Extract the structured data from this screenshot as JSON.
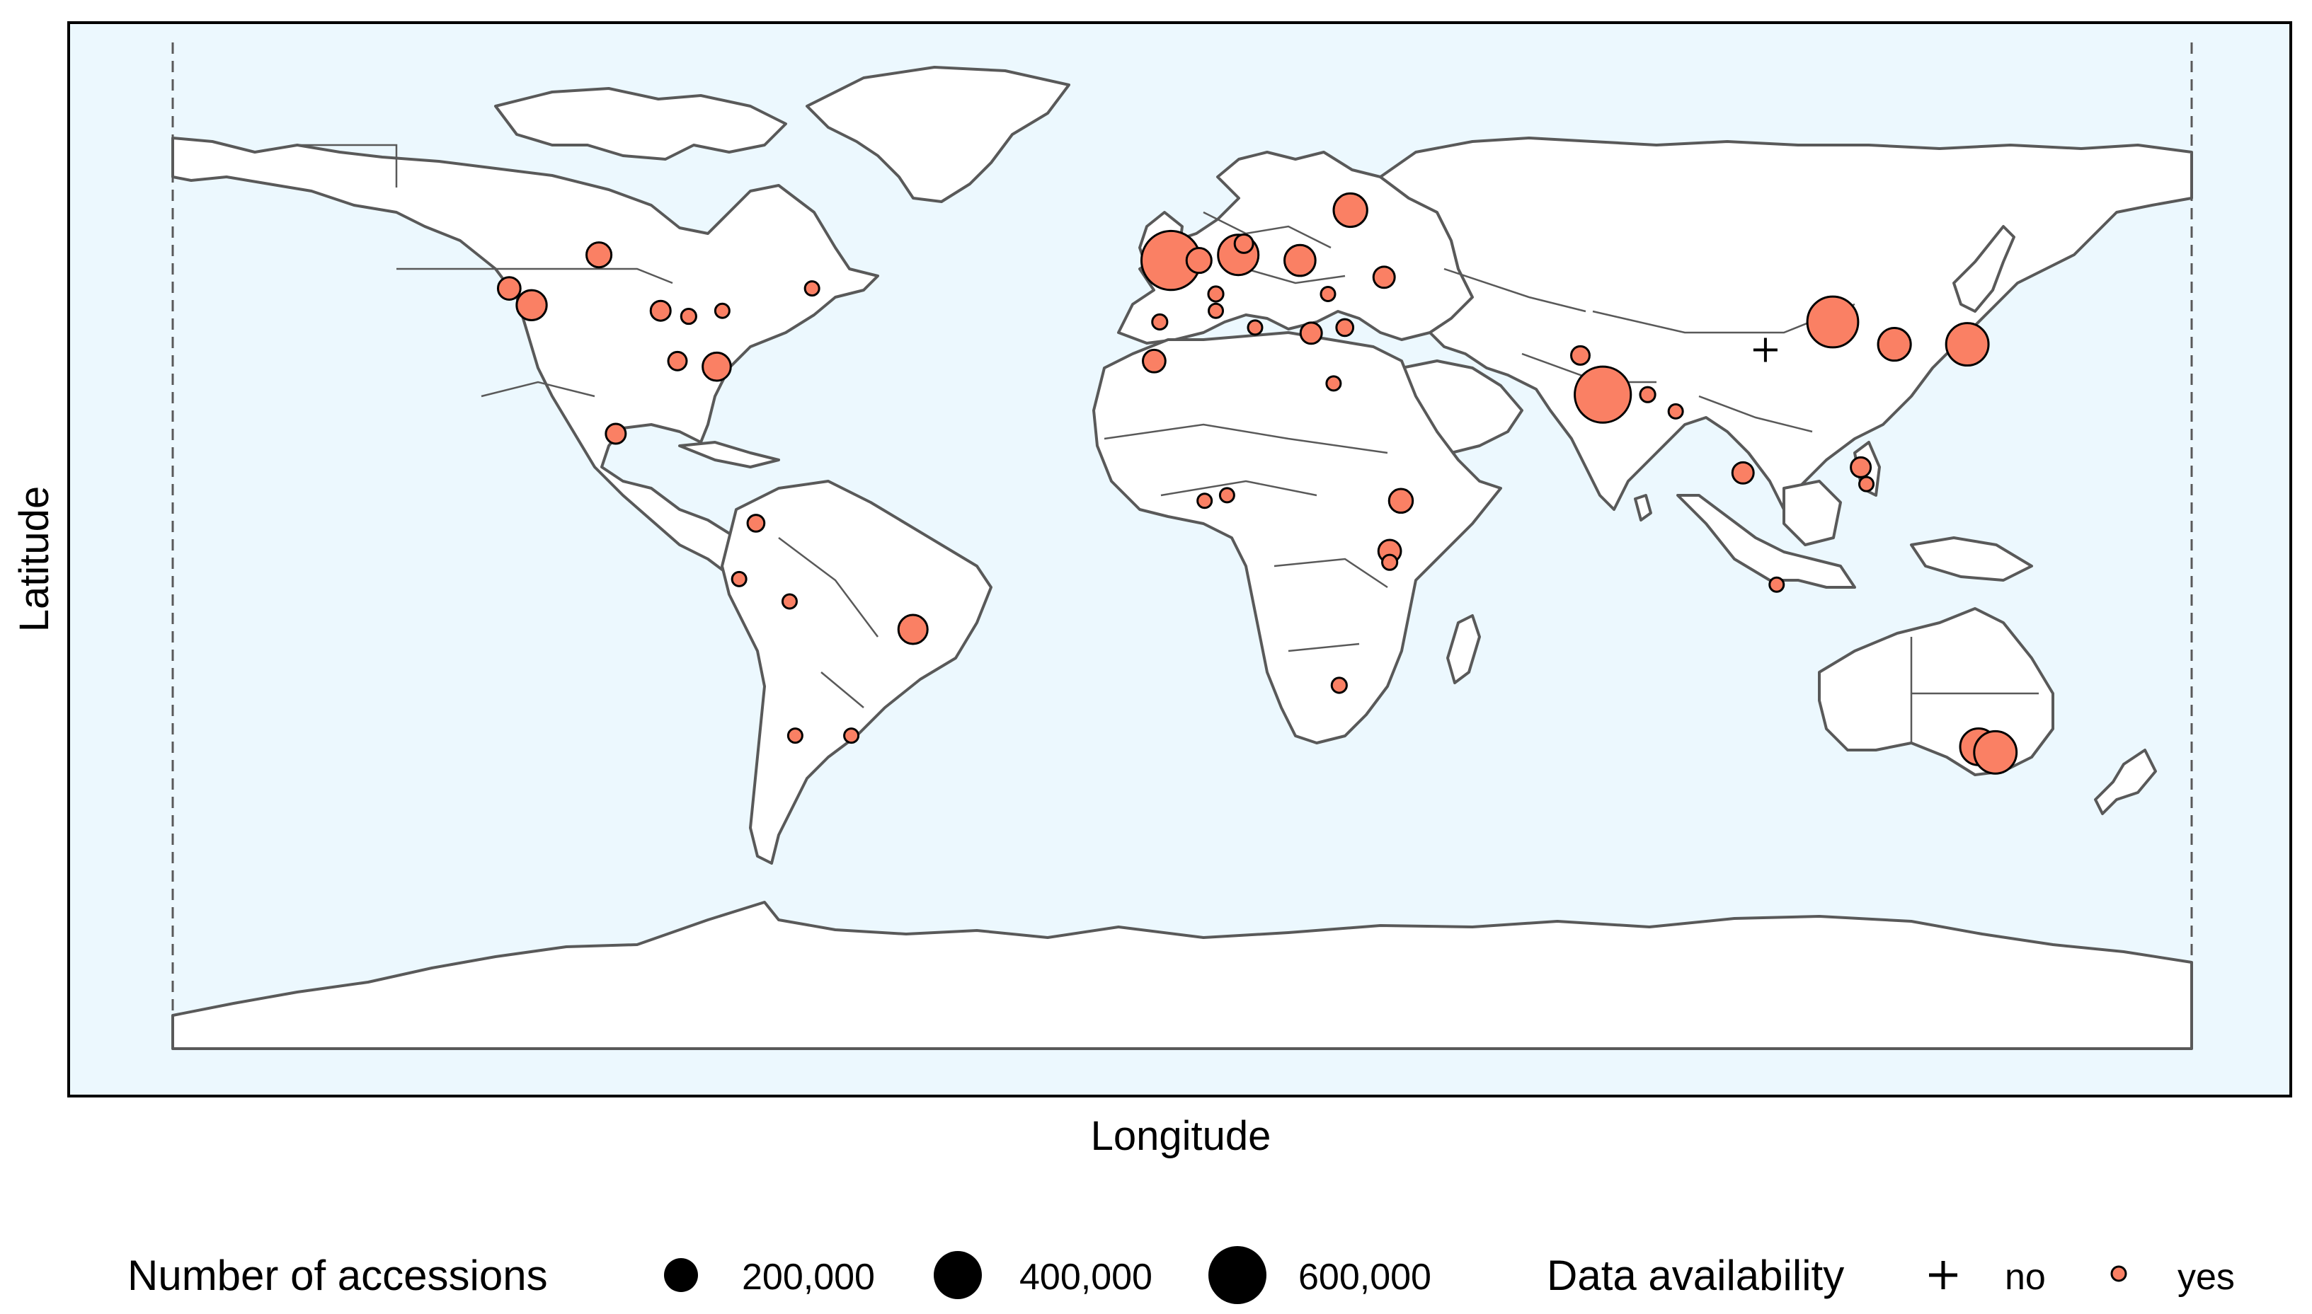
{
  "axes": {
    "xlabel": "Longitude",
    "ylabel": "Latitude"
  },
  "colors": {
    "ocean": "#ecf8fe",
    "marker": "#fa8064",
    "outline": "#595959"
  },
  "legend": {
    "size_title": "Number of accessions",
    "size_items": [
      {
        "label": "200,000",
        "value": 200000
      },
      {
        "label": "400,000",
        "value": 400000
      },
      {
        "label": "600,000",
        "value": 600000
      }
    ],
    "avail_title": "Data availability",
    "avail_items": [
      {
        "label": "no",
        "symbol": "plus"
      },
      {
        "label": "yes",
        "symbol": "circle"
      }
    ]
  },
  "chart_data": {
    "type": "scatter",
    "xlabel": "Longitude",
    "ylabel": "Latitude",
    "xlim": [
      -180,
      180
    ],
    "ylim": [
      -90,
      90
    ],
    "series": [
      {
        "name": "yes",
        "points": [
          {
            "lon": -104,
            "lat": 52,
            "value": 110000
          },
          {
            "lon": -120,
            "lat": 46,
            "value": 90000
          },
          {
            "lon": -116,
            "lat": 43,
            "value": 160000
          },
          {
            "lon": -93,
            "lat": 42,
            "value": 70000
          },
          {
            "lon": -88,
            "lat": 41,
            "value": 40000
          },
          {
            "lon": -82,
            "lat": 42,
            "value": 30000
          },
          {
            "lon": -90,
            "lat": 33,
            "value": 60000
          },
          {
            "lon": -83,
            "lat": 32,
            "value": 140000
          },
          {
            "lon": -66,
            "lat": 46,
            "value": 20000
          },
          {
            "lon": -101,
            "lat": 20,
            "value": 70000
          },
          {
            "lon": -76,
            "lat": 4,
            "value": 50000
          },
          {
            "lon": -79,
            "lat": -6,
            "value": 25000
          },
          {
            "lon": -70,
            "lat": -10,
            "value": 30000
          },
          {
            "lon": -48,
            "lat": -15,
            "value": 150000
          },
          {
            "lon": -69,
            "lat": -34,
            "value": 30000
          },
          {
            "lon": -59,
            "lat": -34,
            "value": 25000
          },
          {
            "lon": -2,
            "lat": 51,
            "value": 620000
          },
          {
            "lon": 3,
            "lat": 51,
            "value": 110000
          },
          {
            "lon": 10,
            "lat": 52,
            "value": 290000
          },
          {
            "lon": 11,
            "lat": 54,
            "value": 60000
          },
          {
            "lon": 21,
            "lat": 51,
            "value": 170000
          },
          {
            "lon": 30,
            "lat": 60,
            "value": 200000
          },
          {
            "lon": 36,
            "lat": 48,
            "value": 80000
          },
          {
            "lon": 26,
            "lat": 45,
            "value": 30000
          },
          {
            "lon": 6,
            "lat": 45,
            "value": 40000
          },
          {
            "lon": 6,
            "lat": 42,
            "value": 30000
          },
          {
            "lon": -4,
            "lat": 40,
            "value": 40000
          },
          {
            "lon": -5,
            "lat": 33,
            "value": 90000
          },
          {
            "lon": 13,
            "lat": 39,
            "value": 35000
          },
          {
            "lon": 23,
            "lat": 38,
            "value": 80000
          },
          {
            "lon": 29,
            "lat": 39,
            "value": 50000
          },
          {
            "lon": 27,
            "lat": 29,
            "value": 35000
          },
          {
            "lon": 39,
            "lat": 8,
            "value": 100000
          },
          {
            "lon": 37,
            "lat": -1,
            "value": 90000
          },
          {
            "lon": 37,
            "lat": -3,
            "value": 40000
          },
          {
            "lon": 28,
            "lat": -25,
            "value": 40000
          },
          {
            "lon": 4,
            "lat": 8,
            "value": 20000
          },
          {
            "lon": 8,
            "lat": 9,
            "value": 20000
          },
          {
            "lon": 71,
            "lat": 34,
            "value": 60000
          },
          {
            "lon": 75,
            "lat": 27,
            "value": 560000
          },
          {
            "lon": 83,
            "lat": 27,
            "value": 40000
          },
          {
            "lon": 88,
            "lat": 24,
            "value": 35000
          },
          {
            "lon": 100,
            "lat": 13,
            "value": 80000
          },
          {
            "lon": 121,
            "lat": 14,
            "value": 70000
          },
          {
            "lon": 122,
            "lat": 11,
            "value": 25000
          },
          {
            "lon": 106,
            "lat": -7,
            "value": 30000
          },
          {
            "lon": 116,
            "lat": 40,
            "value": 460000
          },
          {
            "lon": 127,
            "lat": 36,
            "value": 190000
          },
          {
            "lon": 140,
            "lat": 36,
            "value": 320000
          },
          {
            "lon": 142,
            "lat": -36,
            "value": 240000
          },
          {
            "lon": 145,
            "lat": -37,
            "value": 320000
          }
        ]
      },
      {
        "name": "no",
        "points": [
          {
            "lon": 104,
            "lat": 35
          }
        ]
      }
    ]
  }
}
